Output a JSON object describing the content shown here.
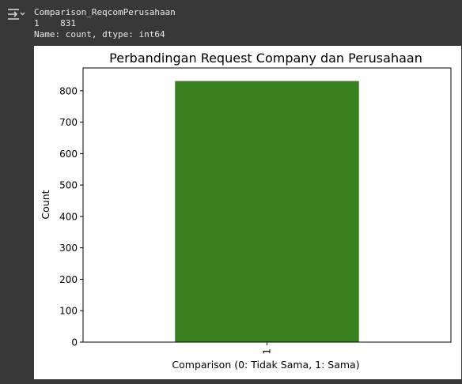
{
  "output": {
    "icon": "output-collapse-icon",
    "lines": [
      "Comparison_ReqcomPerusahaan",
      "1    831",
      "Name: count, dtype: int64"
    ]
  },
  "chart_data": {
    "type": "bar",
    "title": "Perbandingan Request Company dan Perusahaan",
    "xlabel": "Comparison (0: Tidak Sama, 1: Sama)",
    "ylabel": "Count",
    "categories": [
      "1"
    ],
    "values": [
      831
    ],
    "ylim": [
      0,
      872.55
    ],
    "yticks": [
      0,
      100,
      200,
      300,
      400,
      500,
      600,
      700,
      800
    ],
    "bar_color": "#38801f",
    "grid": false,
    "x_tick_rotation": 90
  }
}
